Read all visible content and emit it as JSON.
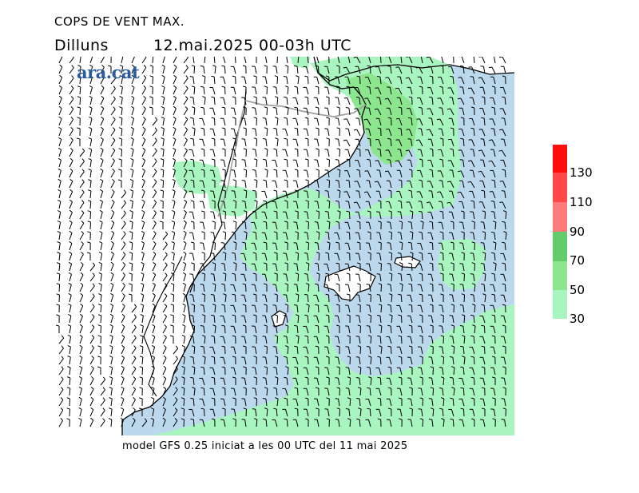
{
  "title": "COPS DE VENT MAX.",
  "day": "Dilluns",
  "datetime": "12.mai.2025 00-03h UTC",
  "logo_text": "ara.cat",
  "footer": "model GFS 0.25 iniciat a les 00 UTC del 11 mai 2025",
  "legend": {
    "labels": [
      "130",
      "110",
      "90",
      "70",
      "50",
      "30"
    ],
    "colors": {
      "30-50": "#a8f5c0",
      "50-70": "#8ce68e",
      "70-90": "#62cc6a",
      "90-110": "#ff7b7b",
      "110-130": "#ff4848",
      "130+": "#ff0e0e"
    }
  },
  "colors": {
    "sea": "#bcd8ec",
    "land": "#ffffff",
    "coast": "#000000",
    "border": "#a0a0a0",
    "barb": "#000000"
  }
}
